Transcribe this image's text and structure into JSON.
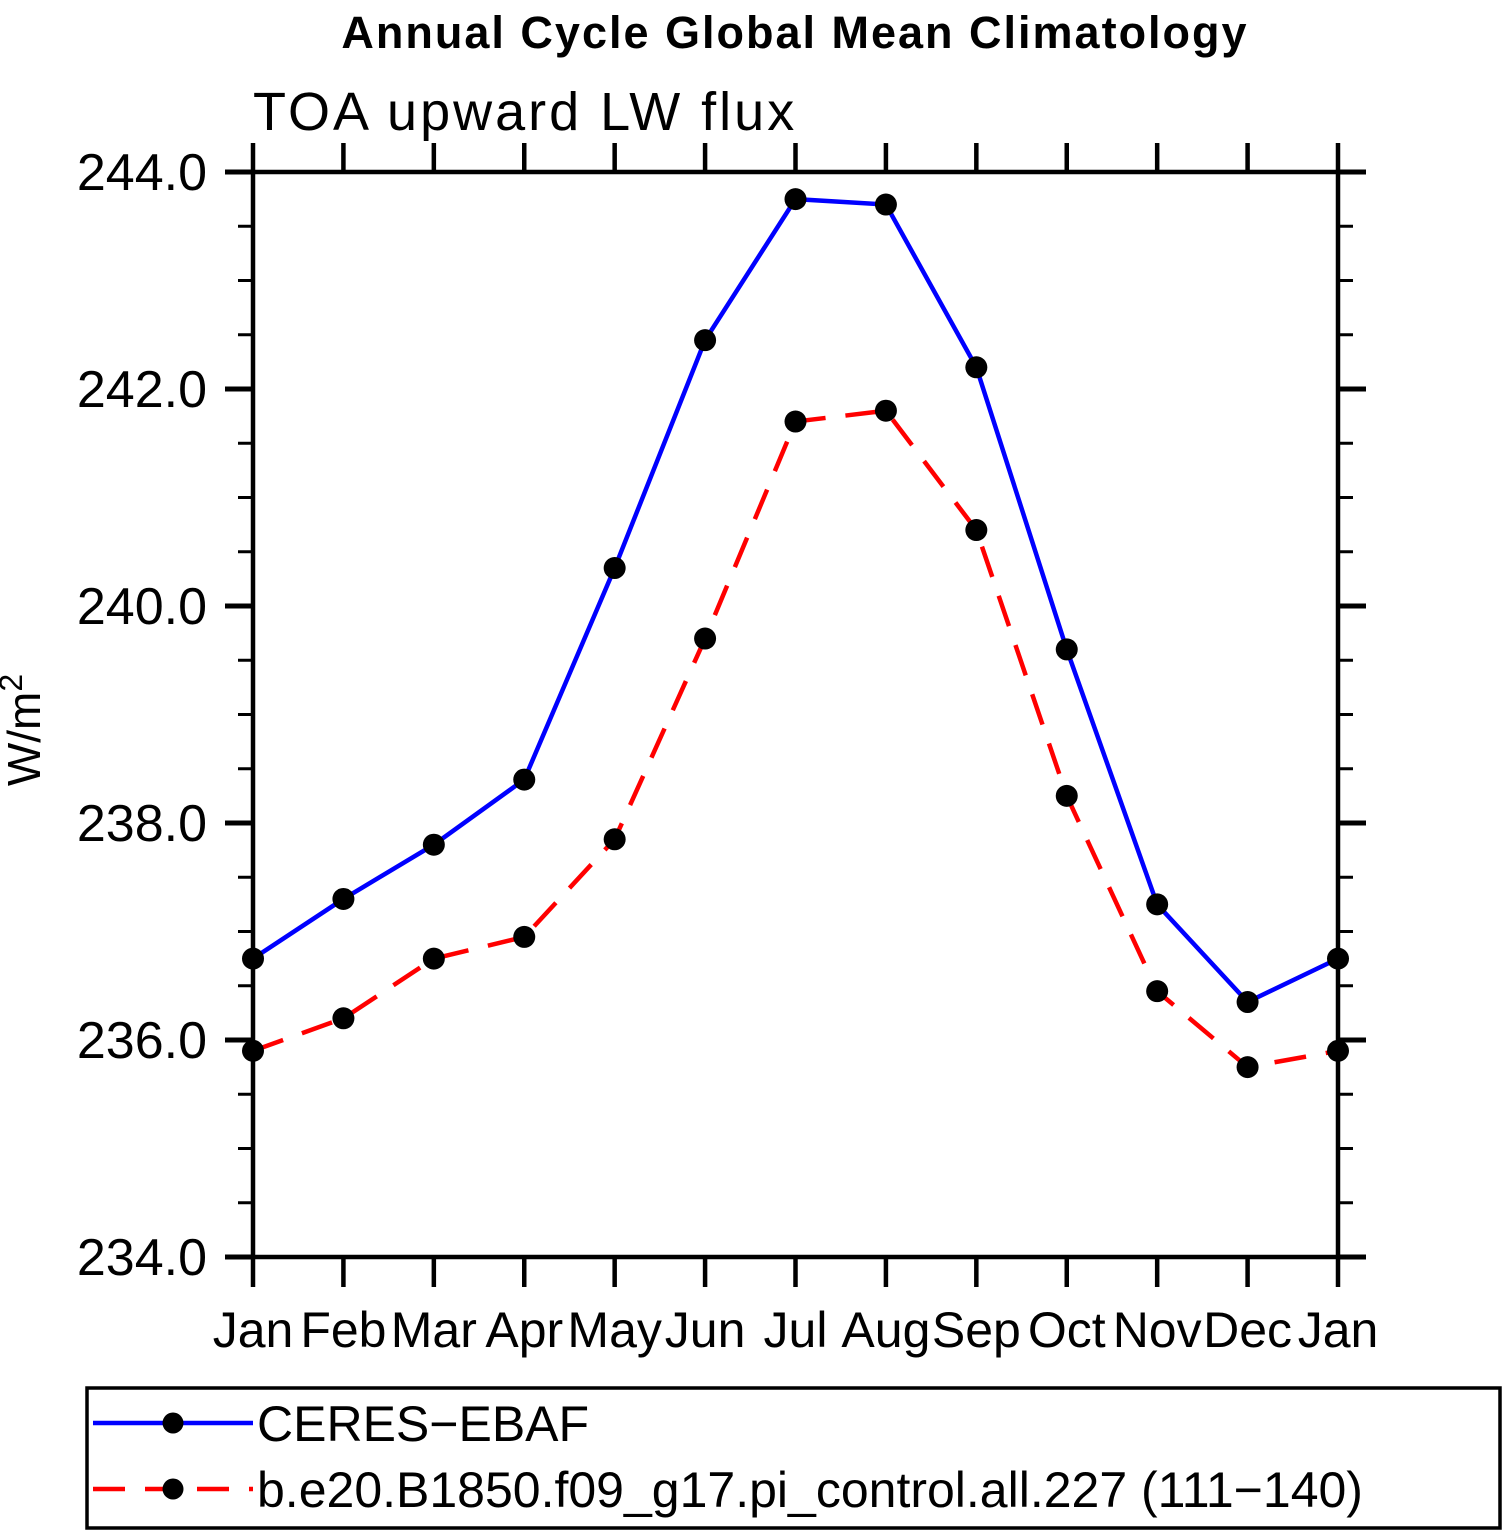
{
  "chart_data": {
    "type": "line",
    "title": "Annual Cycle Global Mean Climatology",
    "subtitle": "TOA upward LW flux",
    "ylabel_base": "W/m",
    "ylabel_exp": "2",
    "categories": [
      "Jan",
      "Feb",
      "Mar",
      "Apr",
      "May",
      "Jun",
      "Jul",
      "Aug",
      "Sep",
      "Oct",
      "Nov",
      "Dec",
      "Jan"
    ],
    "ylim": [
      234.0,
      244.0
    ],
    "y_major_ticks": [
      244.0,
      242.0,
      240.0,
      238.0,
      236.0,
      234.0
    ],
    "y_minor_step": 0.5,
    "y_tick_decimals": 1,
    "grid": "off",
    "legend_position": "bottom",
    "axis_color": "#000000",
    "series": [
      {
        "name": "CERES−EBAF",
        "color": "#0000FF",
        "style": "solid",
        "marker": "circle",
        "marker_color": "#000000",
        "values": [
          236.75,
          237.3,
          237.8,
          238.4,
          240.35,
          242.45,
          243.75,
          243.7,
          242.2,
          239.6,
          237.25,
          236.35,
          236.75
        ]
      },
      {
        "name": "b.e20.B1850.f09_g17.pi_control.all.227 (111−140)",
        "color": "#FF0000",
        "style": "dashed",
        "marker": "circle",
        "marker_color": "#000000",
        "values": [
          235.9,
          236.2,
          236.75,
          236.95,
          237.85,
          239.7,
          241.7,
          241.8,
          240.7,
          238.25,
          236.45,
          235.75,
          235.9
        ]
      }
    ]
  }
}
